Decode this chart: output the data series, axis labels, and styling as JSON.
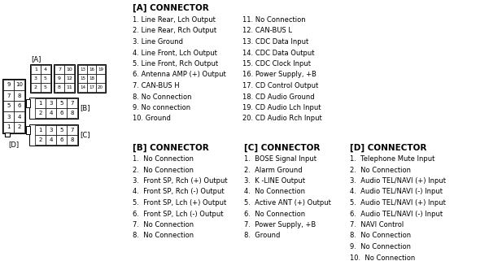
{
  "bg_color": "#ffffff",
  "line_color": "#000000",
  "text_color": "#000000",
  "connector_A_title": "[A] CONNECTOR",
  "connector_B_title": "[B] CONNECTOR",
  "connector_C_title": "[C] CONNECTOR",
  "connector_D_title": "[D] CONNECTOR",
  "connector_A_left": [
    "1. Line Rear, Lch Output",
    "2. Line Rear, Rch Output",
    "3. Line Ground",
    "4. Line Front, Lch Output",
    "5. Line Front, Rch Output",
    "6. Antenna AMP (+) Output",
    "7. CAN-BUS H",
    "8. No Connection",
    "9. No connection",
    "10. Ground"
  ],
  "connector_A_right": [
    "11. No Connection",
    "12. CAN-BUS L",
    "13. CDC Data Input",
    "14. CDC Data Output",
    "15. CDC Clock Input",
    "16. Power Supply, +B",
    "17. CD Control Output",
    "18. CD Audio Ground",
    "19. CD Audio Lch Input",
    "20. CD Audio Rch Input"
  ],
  "connector_B_items": [
    "1.  No Connection",
    "2.  No Connection",
    "3.  Front SP, Rch (+) Output",
    "4.  Front SP, Rch (-) Output",
    "5.  Front SP, Lch (+) Output",
    "6.  Front SP, Lch (-) Output",
    "7.  No Connection",
    "8.  No Connection"
  ],
  "connector_C_items": [
    "1.  BOSE Signal Input",
    "2.  Alarm Ground",
    "3.  K -LINE Output",
    "4.  No Connection",
    "5.  Active ANT (+) Output",
    "6.  No Connection",
    "7.  Power Supply, +B",
    "8.  Ground"
  ],
  "connector_D_items": [
    "1.  Telephone Mute Input",
    "2.  No Connection",
    "3.  Audio TEL/NAVI (+) Input",
    "4.  Audio TEL/NAVI (-) Input",
    "5.  Audio TEL/NAVI (+) Input",
    "6.  Audio TEL/NAVI (-) Input",
    "7.  NAVI Control",
    "8.  No Connection",
    "9.  No Connection",
    "10.  No Connection"
  ],
  "figsize": [
    6.17,
    3.21
  ],
  "dpi": 100
}
